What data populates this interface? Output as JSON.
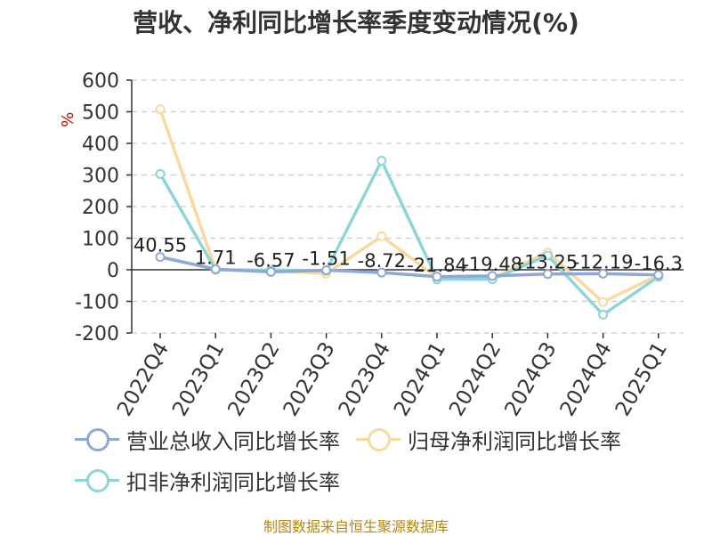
{
  "chart_data": {
    "type": "line",
    "title": "营收、净利同比增长率季度变动情况(%)",
    "ylabel": "%",
    "xlabel": "",
    "ylim": [
      -200,
      600
    ],
    "yticks": [
      600,
      500,
      400,
      300,
      200,
      100,
      0,
      -100,
      -200
    ],
    "grid": true,
    "legend_position": "bottom",
    "categories": [
      "2022Q4",
      "2023Q1",
      "2023Q2",
      "2023Q3",
      "2023Q4",
      "2024Q1",
      "2024Q2",
      "2024Q3",
      "2024Q4",
      "2025Q1"
    ],
    "series": [
      {
        "name": "营业总收入同比增长率",
        "color": "#8fa8d6",
        "values": [
          40.55,
          1.71,
          -6.57,
          -1.51,
          -8.72,
          -21.84,
          -19.48,
          -13.25,
          -12.19,
          -16.3
        ],
        "labels": [
          "40.55",
          "1.71",
          "-6.57",
          "-1.51",
          "-8.72",
          "-21.84",
          "-19.48",
          "-13.25",
          "-12.19",
          "-16.3"
        ]
      },
      {
        "name": "归母净利润同比增长率",
        "color": "#fad99e",
        "values": [
          508,
          1,
          -3,
          -12,
          106,
          -24,
          -26,
          55,
          -102,
          -17
        ]
      },
      {
        "name": "扣非净利润同比增长率",
        "color": "#8dd6d8",
        "values": [
          303,
          0,
          -1,
          -3,
          345,
          -30,
          -30,
          45,
          -142,
          -22
        ]
      }
    ]
  },
  "footer": {
    "source": "制图数据来自恒生聚源数据库"
  }
}
